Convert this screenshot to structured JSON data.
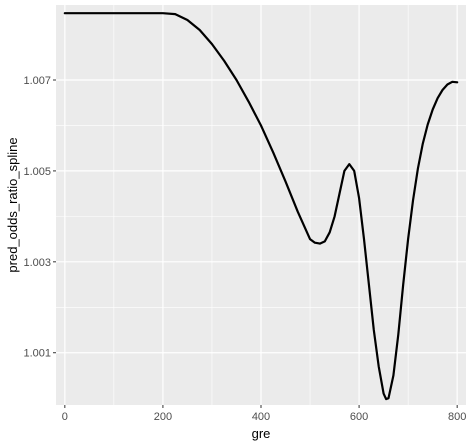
{
  "chart_data": {
    "type": "line",
    "xlabel": "gre",
    "ylabel": "pred_odds_ratio_spline",
    "xlim": [
      -18,
      818
    ],
    "ylim": [
      0.99985,
      1.00865
    ],
    "x_ticks": [
      0,
      200,
      400,
      600,
      800
    ],
    "x_tick_labels": [
      "0",
      "200",
      "400",
      "600",
      "800"
    ],
    "y_ticks": [
      1.001,
      1.003,
      1.005,
      1.007
    ],
    "y_tick_labels": [
      "1.001",
      "1.003",
      "1.005",
      "1.007"
    ],
    "grid": true,
    "panel_color": "#ebebeb",
    "line_color": "#000000",
    "series": [
      {
        "x": [
          0,
          100,
          200,
          225,
          250,
          275,
          300,
          325,
          350,
          375,
          400,
          425,
          450,
          475,
          500,
          510,
          520,
          530,
          540,
          550,
          560,
          570,
          580,
          590,
          600,
          610,
          620,
          630,
          640,
          650,
          655,
          660,
          670,
          680,
          690,
          700,
          710,
          720,
          730,
          740,
          750,
          760,
          770,
          780,
          790,
          800
        ],
        "y": [
          1.00847,
          1.00847,
          1.00847,
          1.00845,
          1.00832,
          1.0081,
          1.00779,
          1.00742,
          1.007,
          1.00652,
          1.006,
          1.0054,
          1.00477,
          1.0041,
          1.0035,
          1.00342,
          1.0034,
          1.00345,
          1.00365,
          1.004,
          1.0045,
          1.005,
          1.00515,
          1.005,
          1.0044,
          1.0035,
          1.0025,
          1.0015,
          1.0007,
          1.0001,
          0.99998,
          1.0,
          1.0005,
          1.0014,
          1.0025,
          1.0035,
          1.00435,
          1.00505,
          1.0056,
          1.00602,
          1.00635,
          1.0066,
          1.00678,
          1.0069,
          1.00696,
          1.00695
        ]
      }
    ]
  }
}
